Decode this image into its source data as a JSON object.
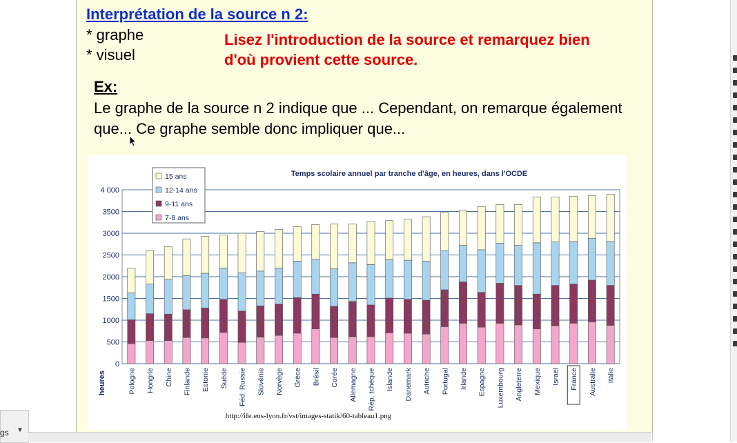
{
  "slide": {
    "title": "Interprétation de la source n 2:",
    "bullets": [
      "* graphe",
      "* visuel"
    ],
    "instruction": "Lisez l'introduction de la source et remarquez bien d'où provient cette source.",
    "ex_label": "Ex:",
    "paragraph": "Le graphe de la source n 2 indique que ... Cependant, on remarque également que... Ce graphe semble donc impliquer que...",
    "source_url": "http://ife.ens-lyon.fr/vst/images-statik/60-tableau1.png"
  },
  "bottom": {
    "label": "gs"
  },
  "chart_data": {
    "type": "bar",
    "stacked": true,
    "title": "Temps scolaire annuel par tranche d'âge, en heures, dans l'OCDE",
    "ylabel": "heures",
    "ylim": [
      0,
      4000
    ],
    "yticks": [
      0,
      500,
      1000,
      1500,
      2000,
      2500,
      3000,
      3500,
      4000
    ],
    "ytick_labels": [
      "0",
      "500",
      "1000",
      "1500",
      "2000",
      "2500",
      "3000",
      "3500",
      "4 000"
    ],
    "grid": true,
    "legend_position": "top-left",
    "legend_order": [
      "15 ans",
      "12-14 ans",
      "9-11 ans",
      "7-8 ans"
    ],
    "categories": [
      "Pologne",
      "Hongrie",
      "Chine",
      "Finlande",
      "Estonie",
      "Suède",
      "Féd. Russie",
      "Slovénie",
      "Norvège",
      "Grèce",
      "Brésil",
      "Corée",
      "Allemagne",
      "Rép. tchèque",
      "Islande",
      "Danemark",
      "Autriche",
      "Portugal",
      "Irlande",
      "Espagne",
      "Luxembourg",
      "Angleterre",
      "Mexique",
      "Israël",
      "France",
      "Australie",
      "Italie"
    ],
    "highlighted_category": "France",
    "series": [
      {
        "name": "7-8 ans",
        "color": "#f4a6cc",
        "values": [
          460,
          530,
          530,
          600,
          590,
          720,
          490,
          610,
          650,
          700,
          800,
          600,
          620,
          620,
          710,
          700,
          680,
          850,
          930,
          840,
          930,
          890,
          800,
          870,
          930,
          960,
          880
        ]
      },
      {
        "name": "9-11 ans",
        "color": "#8a3a5e",
        "values": [
          550,
          620,
          610,
          640,
          690,
          760,
          720,
          720,
          720,
          820,
          800,
          720,
          810,
          730,
          800,
          780,
          780,
          850,
          950,
          800,
          920,
          910,
          800,
          930,
          900,
          960,
          920
        ]
      },
      {
        "name": "12-14 ans",
        "color": "#a9d4f0",
        "values": [
          620,
          680,
          800,
          790,
          800,
          720,
          880,
          800,
          830,
          840,
          800,
          860,
          890,
          930,
          880,
          900,
          900,
          900,
          840,
          980,
          920,
          920,
          1180,
          1000,
          980,
          960,
          1010
        ]
      },
      {
        "name": "15 ans",
        "color": "#fbfbd8",
        "values": [
          570,
          780,
          750,
          840,
          850,
          760,
          910,
          910,
          890,
          790,
          800,
          1030,
          890,
          990,
          900,
          940,
          1020,
          880,
          810,
          990,
          890,
          940,
          1050,
          1030,
          1040,
          990,
          1090
        ]
      }
    ]
  }
}
